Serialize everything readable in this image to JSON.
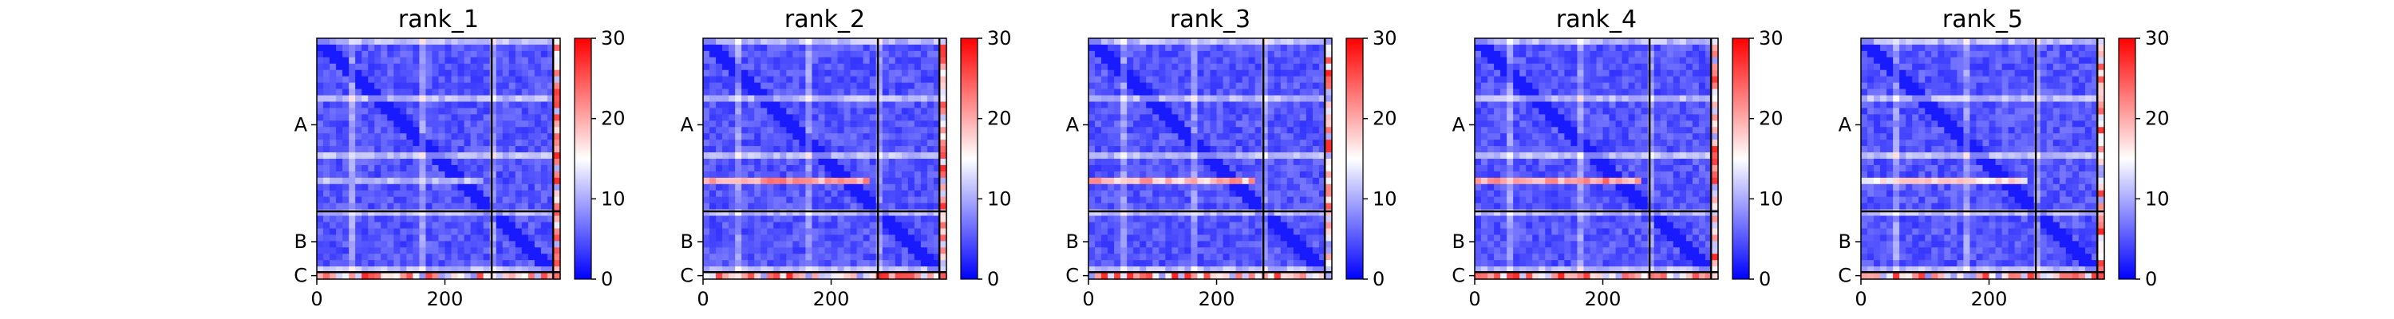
{
  "figure": {
    "colors": {
      "low": "#0000ff",
      "mid": "#ffffff",
      "high": "#ff0000",
      "axis": "#000000",
      "boundary": "#000000"
    }
  },
  "chart_data": [
    {
      "type": "heatmap",
      "title": "rank_1",
      "xlabel": "",
      "ylabel": "",
      "colormap": "bwr",
      "color_range": [
        0,
        30
      ],
      "colorbar_ticks": [
        "0",
        "10",
        "20",
        "30"
      ],
      "x_ticks": [
        "0",
        "200"
      ],
      "y_ticks": [
        "A",
        "B",
        "C"
      ],
      "x_range": [
        0,
        380
      ],
      "y_range": [
        0,
        380
      ],
      "chain_boundaries": [
        273,
        369
      ],
      "chain_labels": [
        "A",
        "B",
        "C"
      ],
      "highlight_row_value": 13
    },
    {
      "type": "heatmap",
      "title": "rank_2",
      "xlabel": "",
      "ylabel": "",
      "colormap": "bwr",
      "color_range": [
        0,
        30
      ],
      "colorbar_ticks": [
        "0",
        "10",
        "20",
        "30"
      ],
      "x_ticks": [
        "0",
        "200"
      ],
      "y_ticks": [
        "A",
        "B",
        "C"
      ],
      "x_range": [
        0,
        380
      ],
      "y_range": [
        0,
        380
      ],
      "chain_boundaries": [
        273,
        369
      ],
      "chain_labels": [
        "A",
        "B",
        "C"
      ],
      "highlight_row_value": 24
    },
    {
      "type": "heatmap",
      "title": "rank_3",
      "xlabel": "",
      "ylabel": "",
      "colormap": "bwr",
      "color_range": [
        0,
        30
      ],
      "colorbar_ticks": [
        "0",
        "10",
        "20",
        "30"
      ],
      "x_ticks": [
        "0",
        "200"
      ],
      "y_ticks": [
        "A",
        "B",
        "C"
      ],
      "x_range": [
        0,
        380
      ],
      "y_range": [
        0,
        380
      ],
      "chain_boundaries": [
        273,
        369
      ],
      "chain_labels": [
        "A",
        "B",
        "C"
      ],
      "highlight_row_value": 23
    },
    {
      "type": "heatmap",
      "title": "rank_4",
      "xlabel": "",
      "ylabel": "",
      "colormap": "bwr",
      "color_range": [
        0,
        30
      ],
      "colorbar_ticks": [
        "0",
        "10",
        "20",
        "30"
      ],
      "x_ticks": [
        "0",
        "200"
      ],
      "y_ticks": [
        "A",
        "B",
        "C"
      ],
      "x_range": [
        0,
        380
      ],
      "y_range": [
        0,
        380
      ],
      "chain_boundaries": [
        273,
        369
      ],
      "chain_labels": [
        "A",
        "B",
        "C"
      ],
      "highlight_row_value": 25
    },
    {
      "type": "heatmap",
      "title": "rank_5",
      "xlabel": "",
      "ylabel": "",
      "colormap": "bwr",
      "color_range": [
        0,
        30
      ],
      "colorbar_ticks": [
        "0",
        "10",
        "20",
        "30"
      ],
      "x_ticks": [
        "0",
        "200"
      ],
      "y_ticks": [
        "A",
        "B",
        "C"
      ],
      "x_range": [
        0,
        380
      ],
      "y_range": [
        0,
        380
      ],
      "chain_boundaries": [
        273,
        369
      ],
      "chain_labels": [
        "A",
        "B",
        "C"
      ],
      "highlight_row_value": 19
    }
  ]
}
